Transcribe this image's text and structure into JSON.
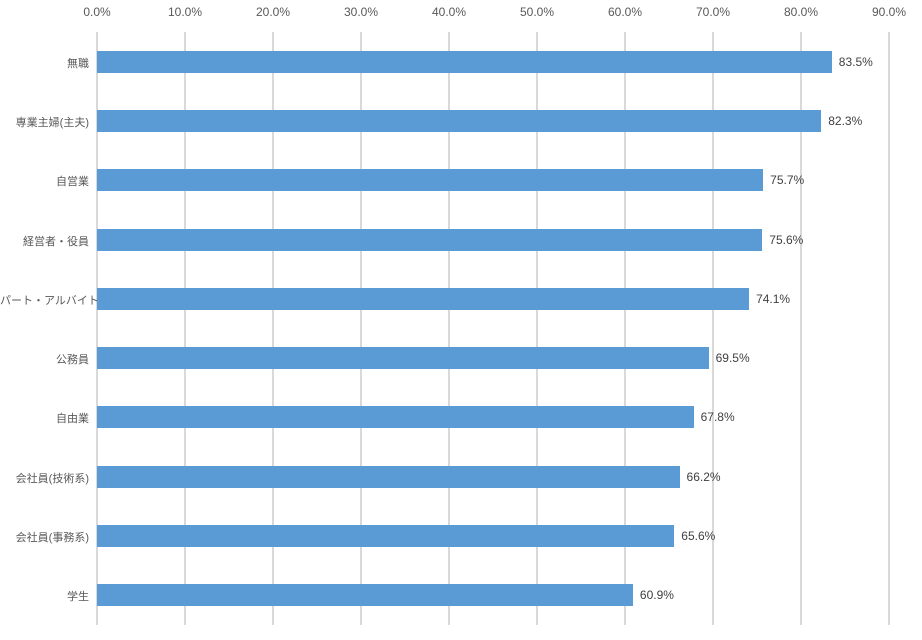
{
  "chart_data": {
    "type": "bar",
    "orientation": "horizontal",
    "title": "",
    "xlabel": "",
    "ylabel": "",
    "legend_position": "none",
    "grid": "vertical",
    "xlim": [
      0,
      90
    ],
    "tick_step": 10,
    "x_ticks": [
      "0.0%",
      "10.0%",
      "20.0%",
      "30.0%",
      "40.0%",
      "50.0%",
      "60.0%",
      "70.0%",
      "80.0%",
      "90.0%"
    ],
    "categories": [
      "無職",
      "専業主婦(主夫)",
      "自営業",
      "経営者・役員",
      "パート・アルバイト",
      "公務員",
      "自由業",
      "会社員(技術系)",
      "会社員(事務系)",
      "学生"
    ],
    "values": [
      83.5,
      82.3,
      75.7,
      75.6,
      74.1,
      69.5,
      67.8,
      66.2,
      65.6,
      60.9
    ],
    "value_labels": [
      "83.5%",
      "82.3%",
      "75.7%",
      "75.6%",
      "74.1%",
      "69.5%",
      "67.8%",
      "66.2%",
      "65.6%",
      "60.9%"
    ],
    "colors": {
      "bar": "#5B9BD5",
      "gridline": "#D9D9D9",
      "tick_label": "#595959",
      "category_label": "#595959",
      "value_label": "#404040",
      "background": "#FFFFFF"
    }
  }
}
